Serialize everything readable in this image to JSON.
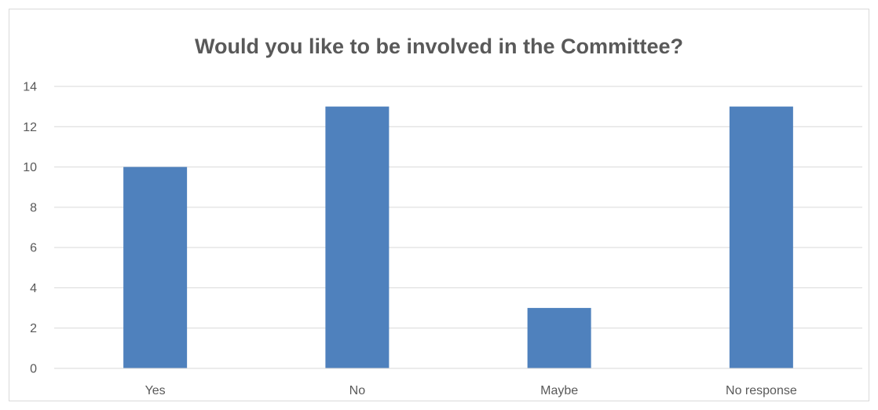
{
  "chart_data": {
    "type": "bar",
    "title": "Would you like to be involved in the Committee?",
    "categories": [
      "Yes",
      "No",
      "Maybe",
      "No response"
    ],
    "values": [
      10,
      13,
      3,
      13
    ],
    "ylim": [
      0,
      14
    ],
    "yticks": [
      "0",
      "2",
      "4",
      "6",
      "8",
      "10",
      "12",
      "14"
    ],
    "grid": true,
    "legend": "none",
    "bar_color": "#4f81bd"
  }
}
